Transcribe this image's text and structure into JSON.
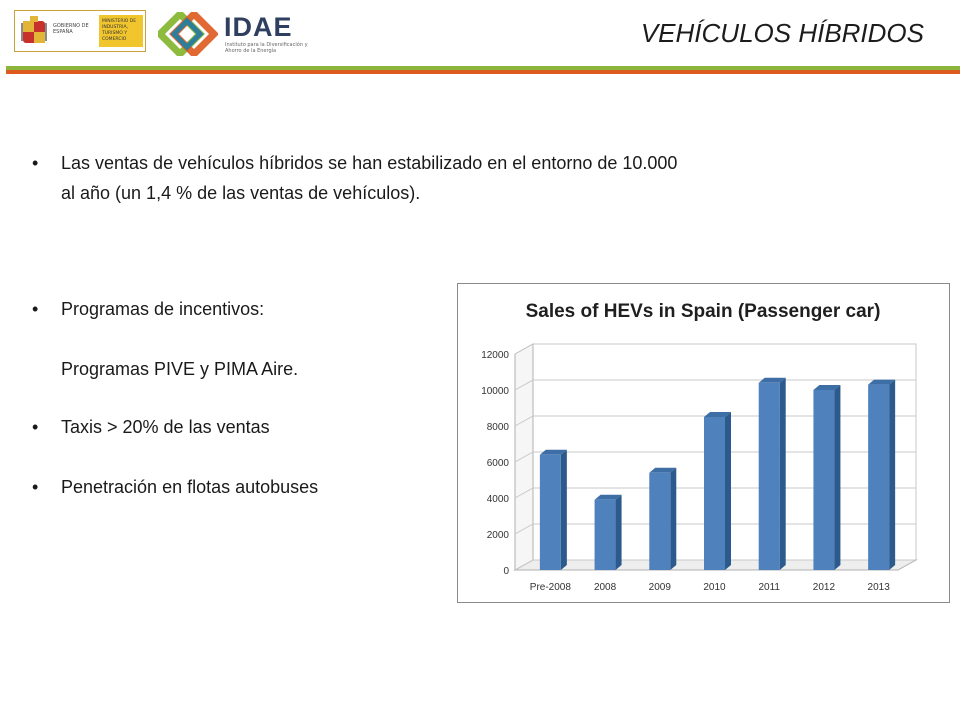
{
  "header": {
    "title": "VEHÍCULOS HÍBRIDOS",
    "gov_logo_text_left": "GOBIERNO DE ESPAÑA",
    "gov_logo_text_right": "MINISTERIO DE INDUSTRIA, TURISMO Y COMERCIO",
    "idae_name": "IDAE",
    "idae_subtitle": "Instituto para la Diversificación y Ahorro de la Energía"
  },
  "bullets": [
    "Las ventas de vehículos híbridos se han estabilizado en el entorno de 10.000 al año (un 1,4 % de las ventas de vehículos).",
    "Programas de incentivos:",
    "Taxis  >  20% de las ventas",
    "Penetración en flotas autobuses"
  ],
  "sub_item": "Programas PIVE y PIMA  Aire.",
  "colors": {
    "bar_front": "#4f81bd",
    "bar_side": "#2c5a8c",
    "rule_green": "#8cb53c",
    "rule_orange": "#de5a1e"
  },
  "chart_data": {
    "type": "bar",
    "title": "Sales of HEVs in Spain (Passenger car)",
    "categories": [
      "Pre-2008",
      "2008",
      "2009",
      "2010",
      "2011",
      "2012",
      "2013"
    ],
    "values": [
      6400,
      3900,
      5400,
      8500,
      10400,
      10000,
      10300
    ],
    "yticks": [
      0,
      2000,
      4000,
      6000,
      8000,
      10000,
      12000
    ],
    "ylim": [
      0,
      12000
    ],
    "xlabel": "",
    "ylabel": "",
    "grid": true
  }
}
